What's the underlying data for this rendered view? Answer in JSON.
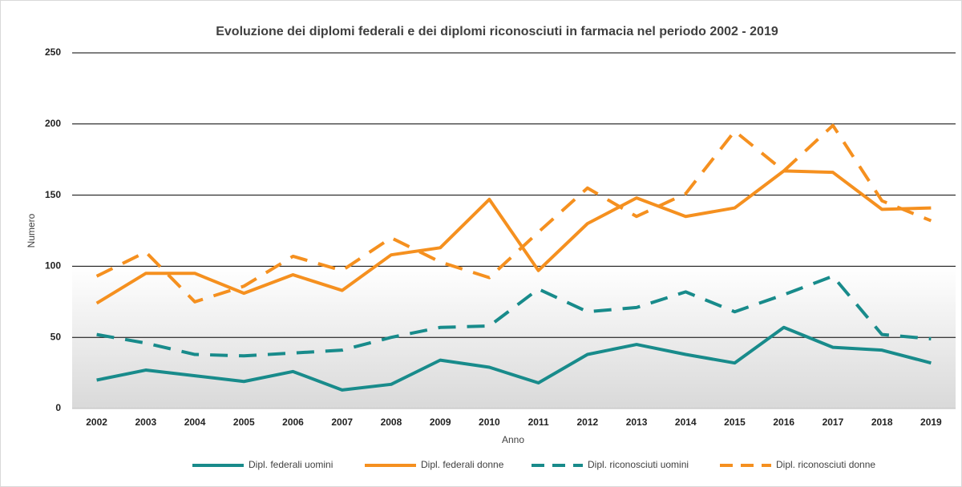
{
  "chart_data": {
    "type": "line",
    "title": "Evoluzione dei diplomi federali e dei diplomi riconosciuti in farmacia nel periodo 2002 - 2019",
    "x_label": "Anno",
    "y_label": "Numero",
    "categories": [
      "2002",
      "2003",
      "2004",
      "2005",
      "2006",
      "2007",
      "2008",
      "2009",
      "2010",
      "2011",
      "2012",
      "2013",
      "2014",
      "2015",
      "2016",
      "2017",
      "2018",
      "2019"
    ],
    "ylim": [
      0,
      250
    ],
    "yticks": [
      0,
      50,
      100,
      150,
      200,
      250
    ],
    "grid": true,
    "legend": "bottom",
    "series": [
      {
        "name": "Dipl. federali uomini",
        "color": "#188b8b",
        "dashed": false,
        "values": [
          20,
          27,
          23,
          19,
          26,
          13,
          17,
          34,
          29,
          18,
          38,
          45,
          38,
          32,
          57,
          43,
          41,
          32
        ]
      },
      {
        "name": "Dipl. federali donne",
        "color": "#f5901f",
        "dashed": false,
        "values": [
          74,
          95,
          95,
          81,
          94,
          83,
          108,
          113,
          147,
          97,
          130,
          148,
          135,
          141,
          167,
          166,
          140,
          141
        ]
      },
      {
        "name": "Dipl. riconosciuti uomini",
        "color": "#188b8b",
        "dashed": true,
        "values": [
          52,
          46,
          38,
          37,
          39,
          41,
          50,
          57,
          58,
          84,
          68,
          71,
          82,
          68,
          80,
          93,
          52,
          49
        ]
      },
      {
        "name": "Dipl. riconosciuti donne",
        "color": "#f5901f",
        "dashed": true,
        "values": [
          93,
          110,
          75,
          86,
          107,
          97,
          120,
          103,
          92,
          124,
          155,
          135,
          151,
          195,
          167,
          199,
          146,
          132
        ]
      }
    ]
  }
}
